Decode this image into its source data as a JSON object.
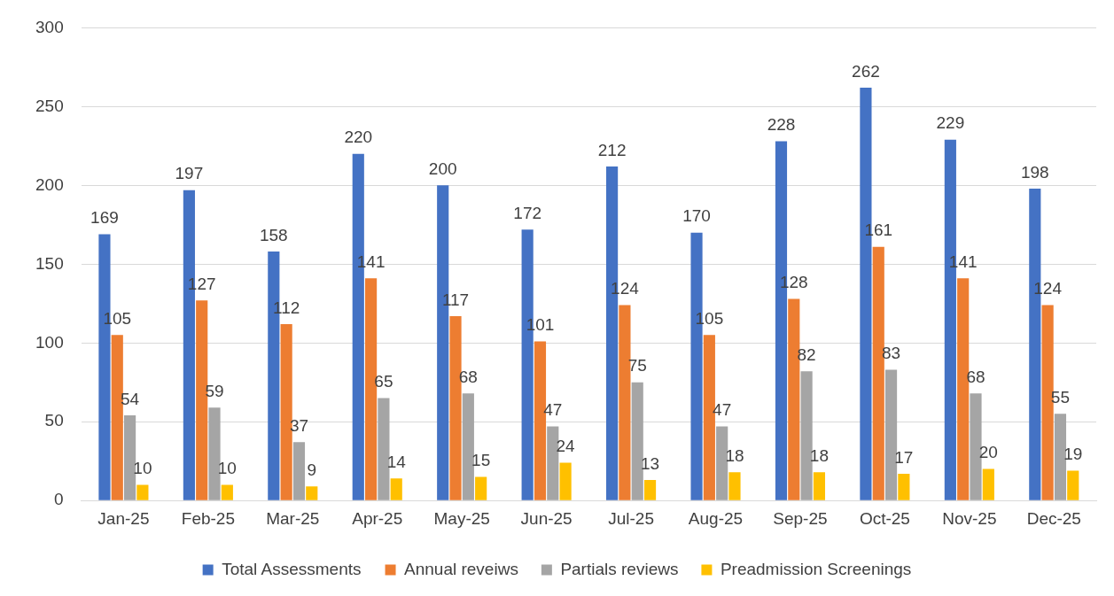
{
  "chart_data": {
    "type": "bar",
    "categories": [
      "Jan-25",
      "Feb-25",
      "Mar-25",
      "Apr-25",
      "May-25",
      "Jun-25",
      "Jul-25",
      "Aug-25",
      "Sep-25",
      "Oct-25",
      "Nov-25",
      "Dec-25"
    ],
    "series": [
      {
        "name": "Total Assessments",
        "color": "#4472c4",
        "values": [
          169,
          197,
          158,
          220,
          200,
          172,
          212,
          170,
          228,
          262,
          229,
          198
        ]
      },
      {
        "name": "Annual reveiws",
        "color": "#ed7d31",
        "values": [
          105,
          127,
          112,
          141,
          117,
          101,
          124,
          105,
          128,
          161,
          141,
          124
        ]
      },
      {
        "name": "Partials reviews",
        "color": "#a5a5a5",
        "values": [
          54,
          59,
          37,
          65,
          68,
          47,
          75,
          47,
          82,
          83,
          68,
          55
        ]
      },
      {
        "name": "Preadmission Screenings",
        "color": "#ffc000",
        "values": [
          10,
          10,
          9,
          14,
          15,
          24,
          13,
          18,
          18,
          17,
          20,
          19
        ]
      }
    ],
    "ylim": [
      0,
      300
    ],
    "yticks": [
      0,
      50,
      100,
      150,
      200,
      250,
      300
    ],
    "grid": "y",
    "legend": "bottom",
    "data_labels": true
  }
}
